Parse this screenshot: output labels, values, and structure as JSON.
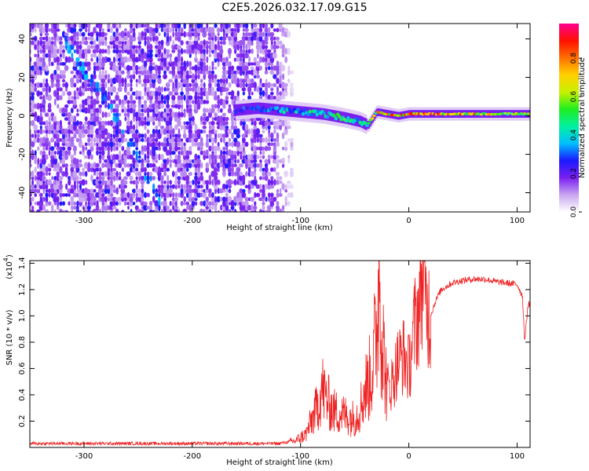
{
  "title": "C2E5.2026.032.17.09.G15",
  "chart_data": [
    {
      "type": "heatmap",
      "xlabel": "Height of straight line (km)",
      "ylabel": "Frequency (Hz)",
      "xlim": [
        -350,
        112
      ],
      "ylim": [
        -50,
        48
      ],
      "xticks": [
        -300,
        -200,
        -100,
        0,
        100
      ],
      "yticks": [
        -40,
        -20,
        0,
        20,
        40
      ],
      "colorbar": {
        "label": "Normalized spectral amplitude",
        "range": [
          0,
          0.98
        ],
        "ticks": [
          0.0,
          0.2,
          0.4,
          0.6,
          0.8
        ],
        "stops": [
          "#ffffff",
          "#c9a5f0",
          "#7a1ff0",
          "#1a1aff",
          "#00bfff",
          "#00f0a0",
          "#20ee20",
          "#c8f000",
          "#ffd000",
          "#ff7000",
          "#ff1000",
          "#ff0090"
        ]
      },
      "noise_region": {
        "x_from": -350,
        "x_to": -107
      },
      "signal_ridge": {
        "x": [
          -160,
          -140,
          -120,
          -100,
          -80,
          -60,
          -45,
          -38,
          -30,
          -20,
          -10,
          0,
          20,
          40,
          60,
          80,
          100,
          112
        ],
        "freq": [
          3,
          4,
          3,
          2,
          1,
          -1,
          -3,
          -5,
          2,
          1,
          0,
          1,
          1,
          1,
          1,
          1,
          1,
          1
        ],
        "amplitude": [
          0.3,
          0.35,
          0.4,
          0.45,
          0.5,
          0.55,
          0.5,
          0.5,
          0.75,
          0.8,
          0.85,
          0.9,
          0.9,
          0.85,
          0.8,
          0.7,
          0.7,
          0.7
        ]
      },
      "diagonal_feature": {
        "x": [
          -320,
          -285,
          -255,
          -230
        ],
        "freq": [
          42,
          12,
          -15,
          -45
        ]
      }
    },
    {
      "type": "line",
      "xlabel": "Height of straight line (km)",
      "ylabel": "SNR (10 * v/v)",
      "y_exponent_label": "(x10",
      "y_exponent": "4",
      "y_exponent_close": ")",
      "xlim": [
        -350,
        112
      ],
      "ylim": [
        0,
        1.42
      ],
      "xticks": [
        -300,
        -200,
        -100,
        0,
        100
      ],
      "yticks": [
        0.2,
        0.4,
        0.6,
        0.8,
        1.0,
        1.2,
        1.4
      ],
      "series": [
        {
          "name": "SNR",
          "color": "#ee2222",
          "x": [
            -350,
            -300,
            -200,
            -120,
            -105,
            -95,
            -90,
            -85,
            -80,
            -75,
            -70,
            -60,
            -50,
            -45,
            -40,
            -35,
            -30,
            -27,
            -25,
            -22,
            -20,
            -15,
            -10,
            -5,
            0,
            5,
            10,
            13,
            15,
            20,
            25,
            30,
            40,
            50,
            60,
            70,
            80,
            90,
            100,
            105,
            107,
            110,
            112
          ],
          "y": [
            0.03,
            0.03,
            0.03,
            0.03,
            0.05,
            0.1,
            0.2,
            0.3,
            0.45,
            0.35,
            0.28,
            0.25,
            0.22,
            0.3,
            0.45,
            0.55,
            0.85,
            1.42,
            0.9,
            0.6,
            0.45,
            0.5,
            0.65,
            0.7,
            0.6,
            0.9,
            1.1,
            1.43,
            1.1,
            1.0,
            1.12,
            1.2,
            1.25,
            1.27,
            1.28,
            1.28,
            1.26,
            1.25,
            1.24,
            1.15,
            0.8,
            1.08,
            1.1
          ]
        }
      ]
    }
  ]
}
